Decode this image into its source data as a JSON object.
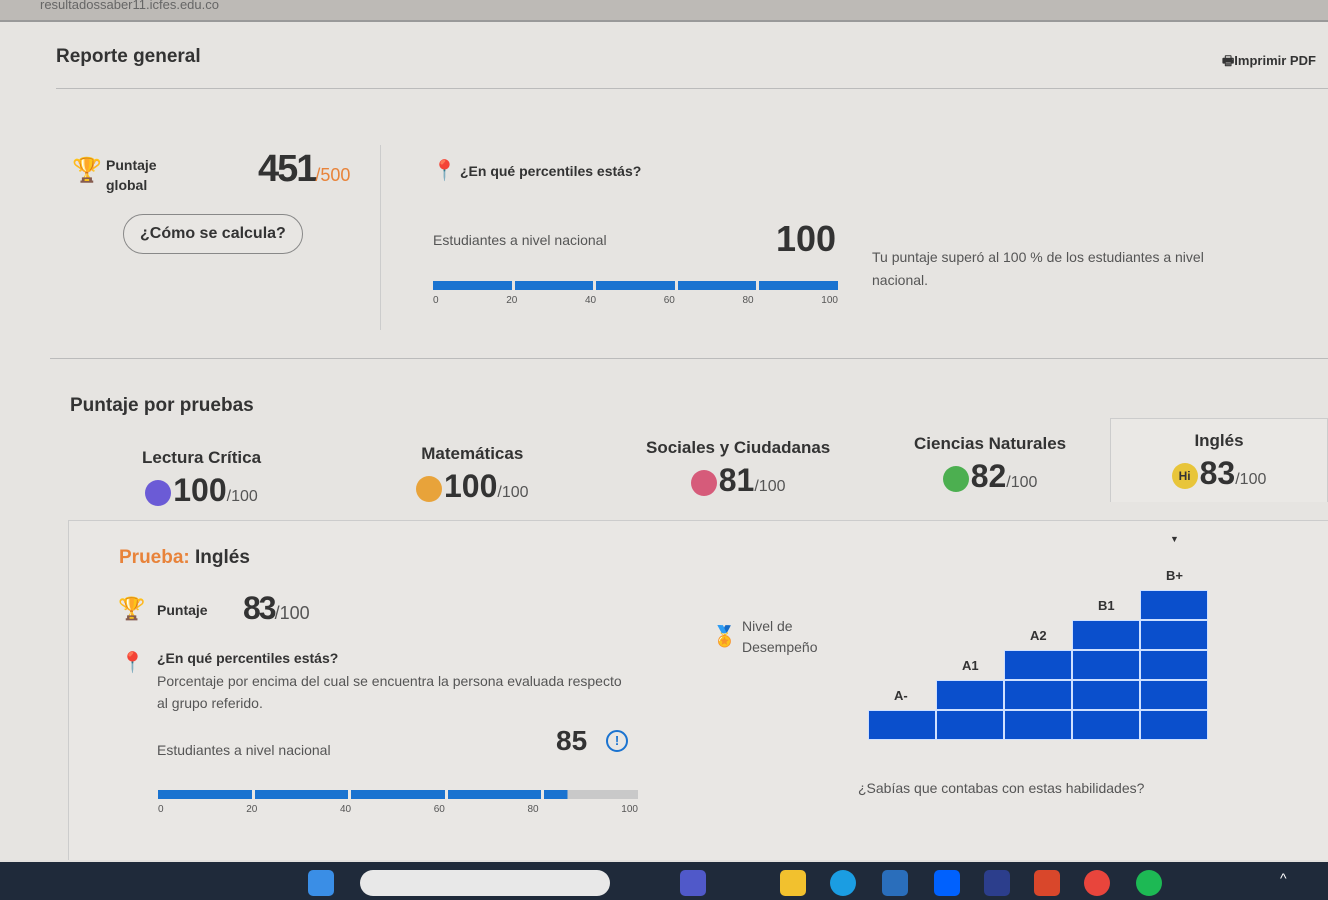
{
  "browser": {
    "url": "resultadossaber11.icfes.edu.co"
  },
  "header": {
    "title": "Reporte general",
    "print_label": "Imprimir PDF"
  },
  "global": {
    "label_1": "Puntaje",
    "label_2": "global",
    "score": "451",
    "max": "/500",
    "how_button": "¿Cómo se calcula?",
    "percentile_title": "¿En qué percentiles estás?",
    "group_label": "Estudiantes a nivel nacional",
    "percentile": "100",
    "percentile_value": 100,
    "note": "Tu puntaje superó al 100 % de los estudiantes a nivel nacional.",
    "ticks": [
      "0",
      "20",
      "40",
      "60",
      "80",
      "100"
    ]
  },
  "tests": {
    "title": "Puntaje por pruebas",
    "items": [
      {
        "name": "Lectura Crítica",
        "score": "100",
        "max": "/100",
        "icon": "book-icon",
        "color": "#6b5bd6"
      },
      {
        "name": "Matemáticas",
        "score": "100",
        "max": "/100",
        "icon": "calculator-icon",
        "color": "#e8a33a"
      },
      {
        "name": "Sociales y Ciudadanas",
        "score": "81",
        "max": "/100",
        "icon": "globe-icon",
        "color": "#d65b7a"
      },
      {
        "name": "Ciencias Naturales",
        "score": "82",
        "max": "/100",
        "icon": "leaf-icon",
        "color": "#4caf50"
      },
      {
        "name": "Inglés",
        "score": "83",
        "max": "/100",
        "icon": "hi-bubble-icon",
        "icon_text": "Hi",
        "color": "#e8c53a"
      }
    ]
  },
  "detail": {
    "prefix": "Prueba:",
    "test": "Inglés",
    "score_label": "Puntaje",
    "score": "83",
    "max": "/100",
    "percentile_title": "¿En qué percentiles estás?",
    "percentile_desc": "Porcentaje por encima del cual se encuentra la persona evaluada respecto al grupo referido.",
    "group_label": "Estudiantes a nivel nacional",
    "percentile": "85",
    "percentile_value": 85,
    "ticks": [
      "0",
      "20",
      "40",
      "60",
      "80",
      "100"
    ],
    "level_label_1": "Nivel de",
    "level_label_2": "Desempeño",
    "levels": [
      "A-",
      "A1",
      "A2",
      "B1",
      "B+"
    ],
    "current_level": "B+",
    "skills_question": "¿Sabías que contabas con estas habilidades?"
  }
}
